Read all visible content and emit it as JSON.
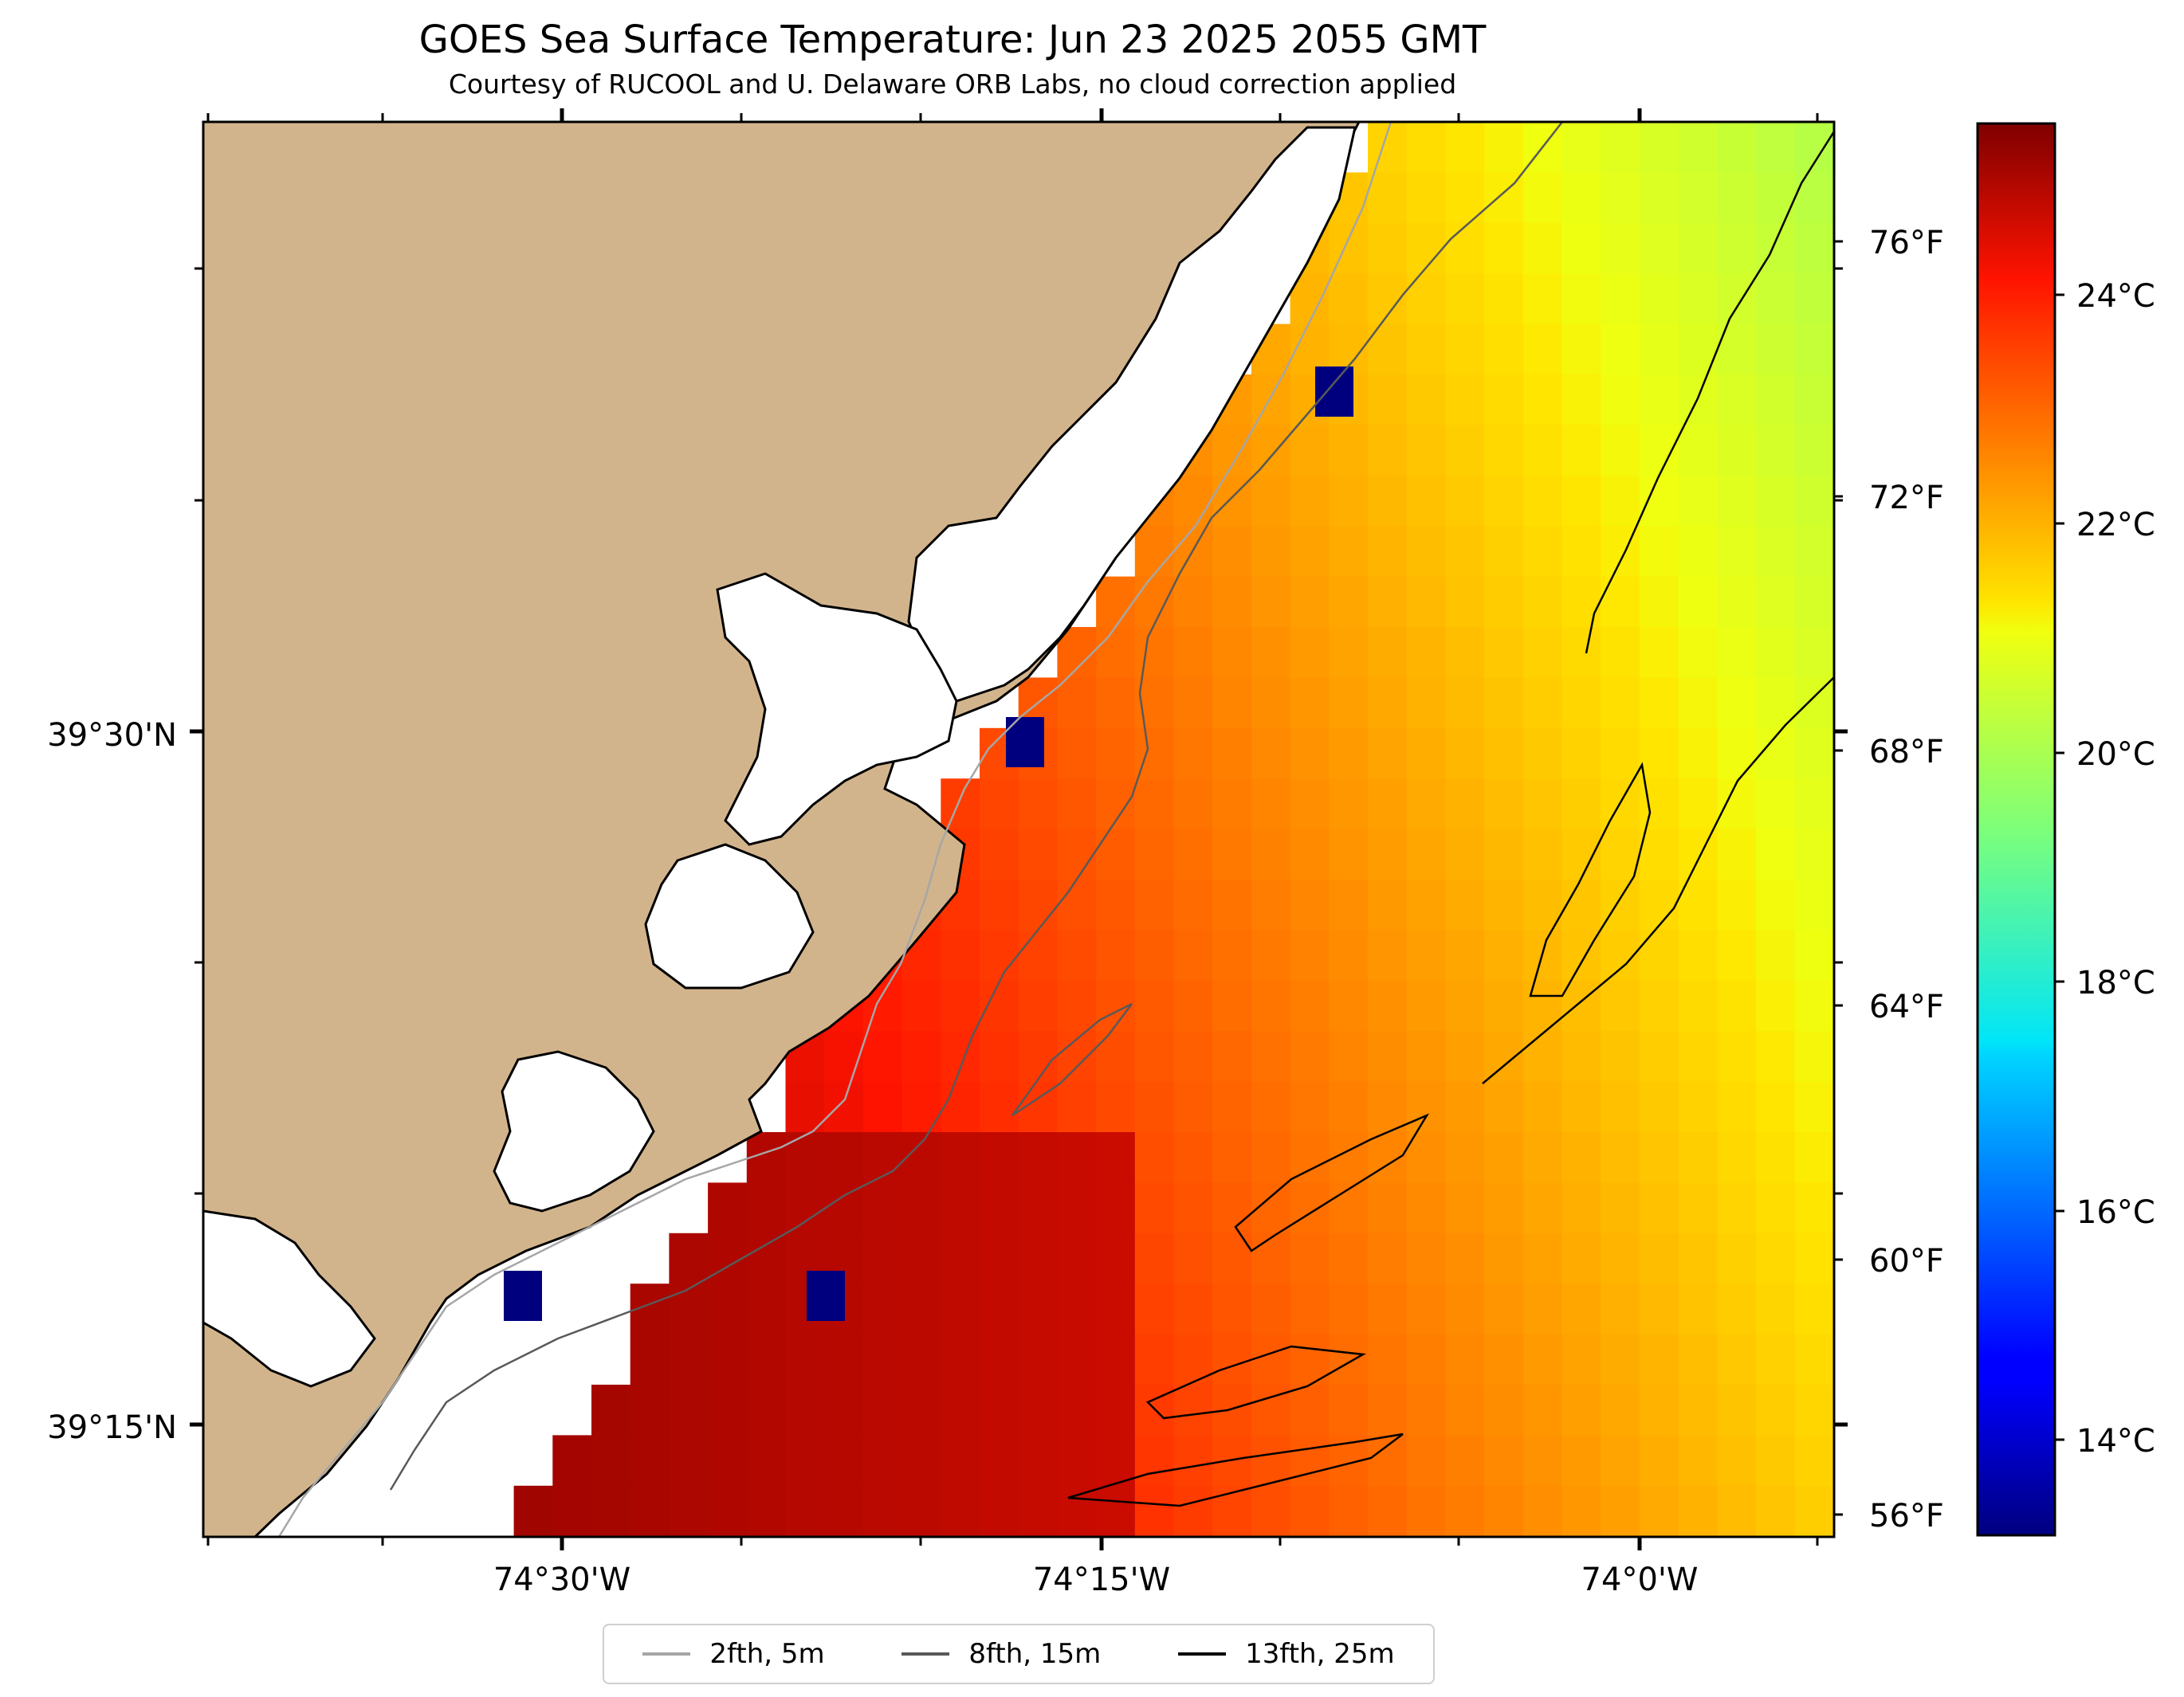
{
  "title": "GOES Sea Surface Temperature: Jun 23 2025 2055 GMT",
  "subtitle": "Courtesy of RUCOOL and U. Delaware ORB Labs, no cloud correction applied",
  "axes": {
    "lon_labels": [
      "74°30'W",
      "74°15'W",
      "74°0'W"
    ],
    "lat_labels": [
      "39°30'N",
      "39°15'N"
    ]
  },
  "colorbar": {
    "celsius_labels": [
      "24°C",
      "22°C",
      "20°C",
      "18°C",
      "16°C",
      "14°C"
    ],
    "fahrenheit_labels": [
      "76°F",
      "72°F",
      "68°F",
      "64°F",
      "60°F",
      "56°F"
    ],
    "colormap": "jet"
  },
  "legend": [
    {
      "label": "2fth, 5m",
      "color": "#a6a6a6"
    },
    {
      "label": "8fth, 15m",
      "color": "#595959"
    },
    {
      "label": "13fth, 25m",
      "color": "#000000"
    }
  ],
  "colors": {
    "land": "#d2b48c",
    "ocean_no_data": "#ffffff",
    "frame": "#000000"
  }
}
